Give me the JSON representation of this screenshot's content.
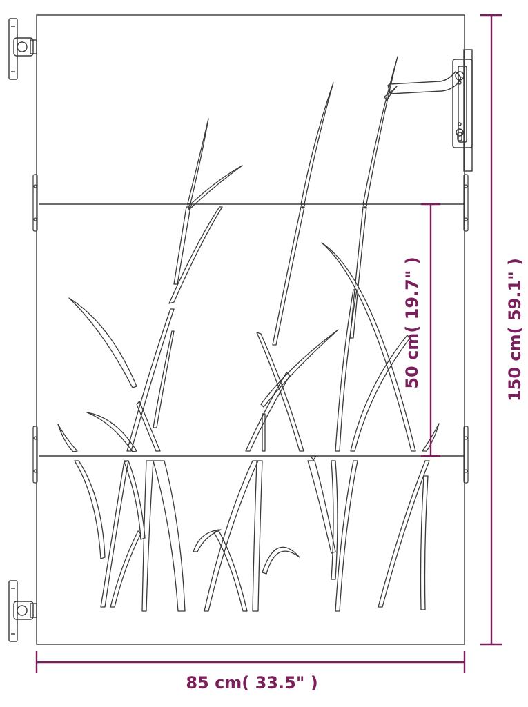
{
  "dimensions": {
    "width_label": "85 cm( 33.5\" )",
    "height_label": "150 cm( 59.1\" )",
    "panel_label": "50 cm( 19.7\" )"
  },
  "colors": {
    "dimension": "#7a1f5c",
    "outline": "#3a3a3a",
    "background": "#ffffff"
  }
}
